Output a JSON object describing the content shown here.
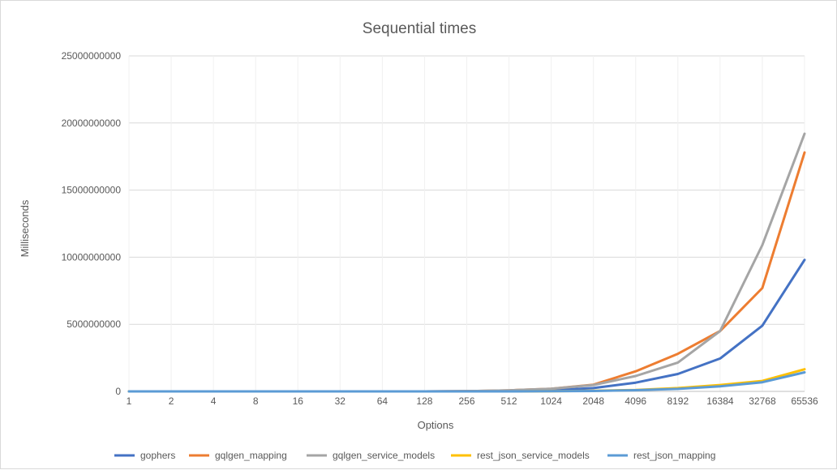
{
  "chart_data": {
    "type": "line",
    "title": "Sequential times",
    "xlabel": "Options",
    "ylabel": "Milliseconds",
    "categories": [
      "1",
      "2",
      "4",
      "8",
      "16",
      "32",
      "64",
      "128",
      "256",
      "512",
      "1024",
      "2048",
      "4096",
      "8192",
      "16384",
      "32768",
      "65536"
    ],
    "ylim": [
      0,
      25000000000
    ],
    "yticks": [
      "0",
      "5000000000",
      "10000000000",
      "15000000000",
      "20000000000",
      "25000000000"
    ],
    "grid": true,
    "legend_position": "bottom",
    "series": [
      {
        "name": "gophers",
        "color": "#4472c4",
        "values": [
          0,
          0,
          0,
          0,
          0,
          0,
          0,
          0,
          10000000,
          30000000,
          80000000,
          250000000,
          650000000,
          1300000000,
          2450000000,
          4900000000,
          9800000000
        ]
      },
      {
        "name": "gqlgen_mapping",
        "color": "#ed7d31",
        "values": [
          0,
          0,
          0,
          0,
          0,
          0,
          0,
          0,
          20000000,
          80000000,
          200000000,
          500000000,
          1500000000,
          2800000000,
          4500000000,
          7700000000,
          17800000000
        ]
      },
      {
        "name": "gqlgen_service_models",
        "color": "#a5a5a5",
        "values": [
          0,
          0,
          0,
          0,
          0,
          0,
          0,
          0,
          20000000,
          80000000,
          200000000,
          480000000,
          1150000000,
          2150000000,
          4500000000,
          10900000000,
          19200000000
        ]
      },
      {
        "name": "rest_json_service_models",
        "color": "#ffc000",
        "values": [
          0,
          0,
          0,
          0,
          0,
          0,
          0,
          0,
          0,
          0,
          10000000,
          40000000,
          110000000,
          250000000,
          480000000,
          780000000,
          1650000000
        ]
      },
      {
        "name": "rest_json_mapping",
        "color": "#5b9bd5",
        "values": [
          0,
          0,
          0,
          0,
          0,
          0,
          0,
          0,
          0,
          0,
          10000000,
          30000000,
          90000000,
          190000000,
          380000000,
          680000000,
          1420000000
        ]
      }
    ]
  }
}
